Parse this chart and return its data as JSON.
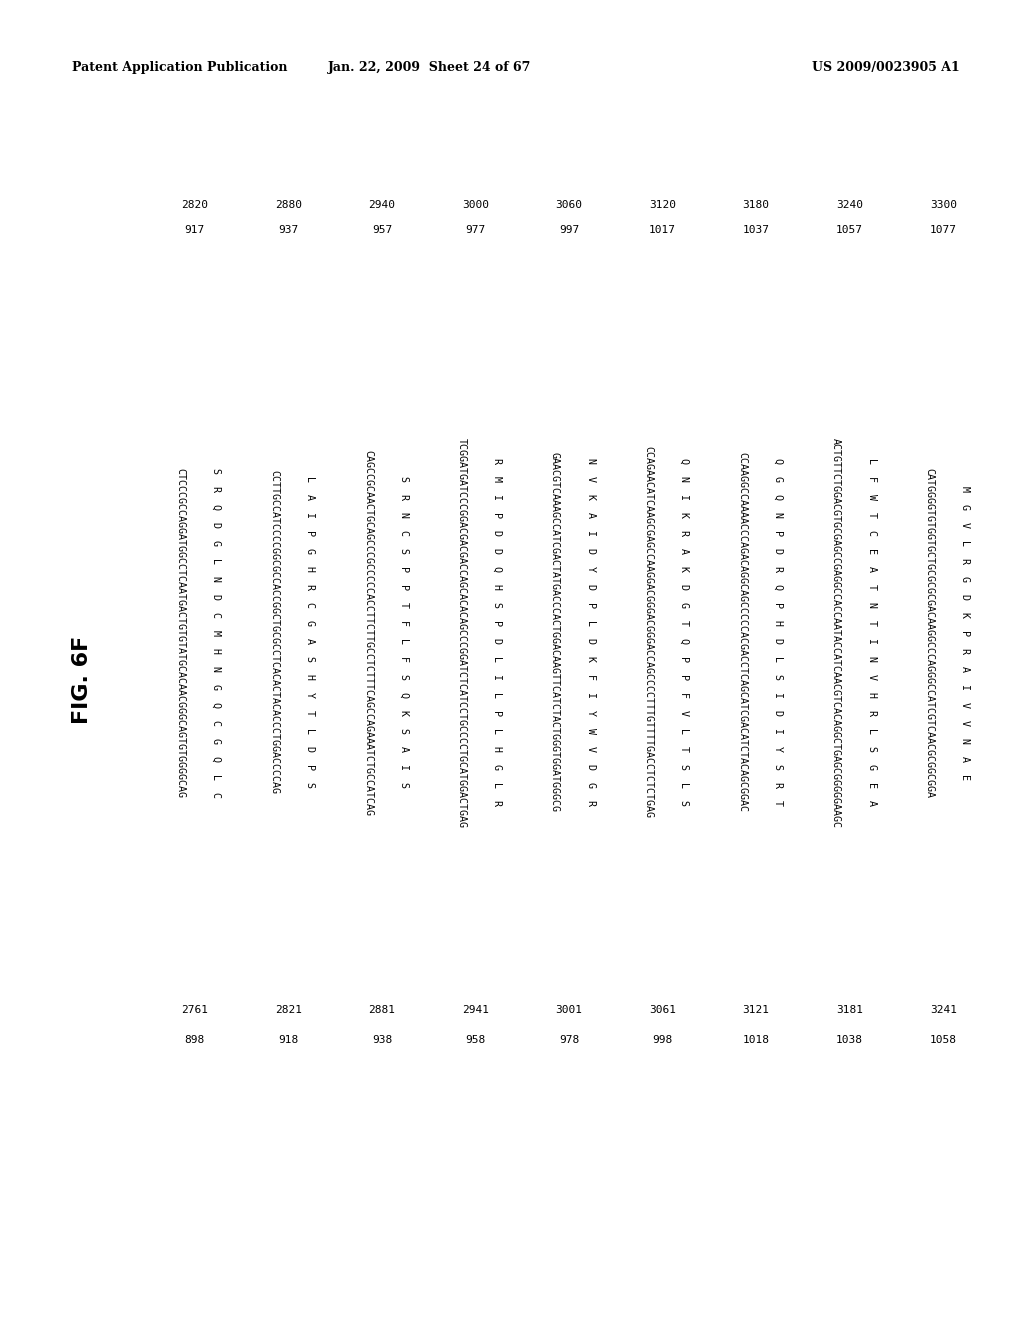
{
  "header_left": "Patent Application Publication",
  "header_center": "Jan. 22, 2009  Sheet 24 of 67",
  "header_right": "US 2009/0023905 A1",
  "figure_label": "FIG. 6F",
  "rows": [
    {
      "left_nums": [
        "2761",
        "898"
      ],
      "dna": "CTCCCGCCAGGATGGCCTCAATGACTGTGTATGCACAACGGGCAGTGTGGGGCAG",
      "aa": "S  R  Q  D  G  L  N  D  C  M  H  N  G  Q  C  G  Q  L  C",
      "right_nums": [
        "2820",
        "917"
      ]
    },
    {
      "left_nums": [
        "2821",
        "918"
      ],
      "dna": "CCTTGCCATCCCCGGCGCCACCGGCTGCGCCTCACACTACACCCTGGACCCCAG",
      "aa": "L  A  I  P  G  H  R  C  G  A  S  H  Y  T  L  D  P  S",
      "right_nums": [
        "2880",
        "937"
      ]
    },
    {
      "left_nums": [
        "2881",
        "938"
      ],
      "dna": "CAGCCGCAACTGCAGCCCGCCCCCACCTTCTTGCCTCTTTCAGCCAGAAATCTGCCATCAG",
      "aa": "S  R  N  C  S  P  P  T  F  L  F  S  Q  K  S  A  I  S",
      "right_nums": [
        "2940",
        "957"
      ]
    },
    {
      "left_nums": [
        "2941",
        "958"
      ],
      "dna": "TCGGATGATCCCGGACGACGACCAGCACACAGCCCGGATCTCATCCTGCCCCTGCATGGACTGAG",
      "aa": "R  M  I  P  D  D  Q  H  S  P  D  L  I  L  P  L  H  G  L  R",
      "right_nums": [
        "3000",
        "977"
      ]
    },
    {
      "left_nums": [
        "3001",
        "978"
      ],
      "dna": "GAACGTCAAAGCCATCGACTATGACCCACTGGACAAGTTCATCTACTGGGTGGATGGGCG",
      "aa": "N  V  K  A  I  D  Y  D  P  L  D  K  F  I  Y  W  V  D  G  R",
      "right_nums": [
        "3060",
        "997"
      ]
    },
    {
      "left_nums": [
        "3061",
        "998"
      ],
      "dna": "CCAGAACATCAAGCGAGCCAAGGACGGGACGGGACCAGCCCCTTTGTTTTGACCTCTCTGAG",
      "aa": "Q  N  I  K  R  A  K  D  G  T  Q  P  P  F  V  L  T  S  L  S",
      "right_nums": [
        "3120",
        "1017"
      ]
    },
    {
      "left_nums": [
        "3121",
        "1018"
      ],
      "dna": "CCAAGGCCAAAACCCAGACAGGCAGCCCCCACGACCTCAGCATCGACATCTACAGCGGAC",
      "aa": "Q  G  Q  N  P  D  R  Q  P  H  D  L  S  I  D  I  Y  S  R  T",
      "right_nums": [
        "3180",
        "1037"
      ]
    },
    {
      "left_nums": [
        "3181",
        "1038"
      ],
      "dna": "ACTGTTCTGGACGTGCGAGCCGAGGCCACCAATACCATCAACGTCACAGGCTGAGCGGGGGAAGC",
      "aa": "L  F  W  T  C  E  A  T  N  T  I  N  V  H  R  L  S  G  E  A",
      "right_nums": [
        "3240",
        "1057"
      ]
    },
    {
      "left_nums": [
        "3241",
        "1058"
      ],
      "dna": "CATGGGGTGTGGTGCTGCGCGCGACAAGGCCCAGGGCCATCGTCAACGCGGCGGA",
      "aa": "M  G  V  L  R  G  D  K  P  R  A  I  V  V  N  A  E",
      "right_nums": [
        "3300",
        "1077"
      ]
    }
  ],
  "fig_width": 10.24,
  "fig_height": 13.2,
  "dpi": 100,
  "bg_color": "#ffffff",
  "text_color": "#000000",
  "header_fontsize": 9,
  "num_fontsize": 8,
  "seq_fontsize": 7.2,
  "fig_label_fontsize": 16
}
